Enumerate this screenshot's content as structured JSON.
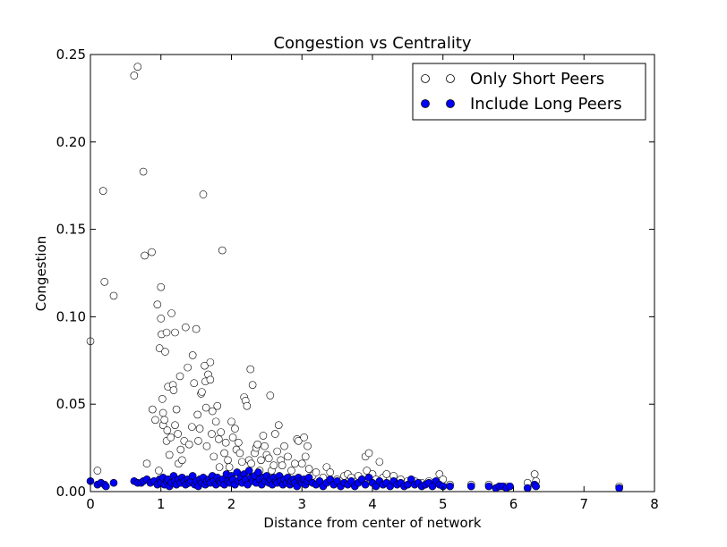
{
  "chart_data": {
    "type": "scatter",
    "title": "Congestion vs Centrality",
    "xlabel": "Distance from center of network",
    "ylabel": "Congestion",
    "xlim": [
      0,
      8
    ],
    "ylim": [
      0,
      0.25
    ],
    "xticks": [
      0,
      1,
      2,
      3,
      4,
      5,
      6,
      7,
      8
    ],
    "yticks": [
      0.0,
      0.05,
      0.1,
      0.15,
      0.2,
      0.25
    ],
    "xtick_labels": [
      "0",
      "1",
      "2",
      "3",
      "4",
      "5",
      "6",
      "7",
      "8"
    ],
    "ytick_labels": [
      "0.00",
      "0.05",
      "0.10",
      "0.15",
      "0.20",
      "0.25"
    ],
    "grid": false,
    "legend_position": "top-right",
    "series": [
      {
        "name": "Only Short Peers",
        "marker": "open-circle",
        "color": "#000000",
        "points": [
          [
            0.0,
            0.086
          ],
          [
            0.1,
            0.012
          ],
          [
            0.18,
            0.172
          ],
          [
            0.2,
            0.12
          ],
          [
            0.33,
            0.112
          ],
          [
            0.62,
            0.238
          ],
          [
            0.67,
            0.243
          ],
          [
            0.75,
            0.183
          ],
          [
            0.77,
            0.135
          ],
          [
            0.8,
            0.016
          ],
          [
            0.87,
            0.137
          ],
          [
            0.88,
            0.047
          ],
          [
            0.92,
            0.041
          ],
          [
            0.95,
            0.107
          ],
          [
            0.97,
            0.012
          ],
          [
            0.98,
            0.082
          ],
          [
            1.0,
            0.099
          ],
          [
            1.0,
            0.117
          ],
          [
            1.01,
            0.09
          ],
          [
            1.02,
            0.053
          ],
          [
            1.03,
            0.045
          ],
          [
            1.03,
            0.038
          ],
          [
            1.05,
            0.041
          ],
          [
            1.06,
            0.08
          ],
          [
            1.08,
            0.091
          ],
          [
            1.08,
            0.029
          ],
          [
            1.09,
            0.035
          ],
          [
            1.1,
            0.06
          ],
          [
            1.12,
            0.021
          ],
          [
            1.14,
            0.031
          ],
          [
            1.15,
            0.102
          ],
          [
            1.17,
            0.061
          ],
          [
            1.18,
            0.058
          ],
          [
            1.2,
            0.091
          ],
          [
            1.2,
            0.038
          ],
          [
            1.22,
            0.047
          ],
          [
            1.24,
            0.033
          ],
          [
            1.25,
            0.016
          ],
          [
            1.27,
            0.066
          ],
          [
            1.28,
            0.024
          ],
          [
            1.3,
            0.018
          ],
          [
            1.33,
            0.029
          ],
          [
            1.35,
            0.094
          ],
          [
            1.38,
            0.071
          ],
          [
            1.4,
            0.027
          ],
          [
            1.44,
            0.037
          ],
          [
            1.45,
            0.078
          ],
          [
            1.47,
            0.062
          ],
          [
            1.5,
            0.093
          ],
          [
            1.52,
            0.044
          ],
          [
            1.53,
            0.029
          ],
          [
            1.55,
            0.036
          ],
          [
            1.57,
            0.056
          ],
          [
            1.58,
            0.057
          ],
          [
            1.6,
            0.17
          ],
          [
            1.62,
            0.072
          ],
          [
            1.63,
            0.063
          ],
          [
            1.64,
            0.048
          ],
          [
            1.65,
            0.026
          ],
          [
            1.67,
            0.067
          ],
          [
            1.7,
            0.074
          ],
          [
            1.7,
            0.064
          ],
          [
            1.72,
            0.033
          ],
          [
            1.73,
            0.046
          ],
          [
            1.75,
            0.02
          ],
          [
            1.78,
            0.04
          ],
          [
            1.8,
            0.049
          ],
          [
            1.82,
            0.03
          ],
          [
            1.83,
            0.014
          ],
          [
            1.85,
            0.034
          ],
          [
            1.87,
            0.138
          ],
          [
            1.9,
            0.022
          ],
          [
            1.92,
            0.028
          ],
          [
            1.95,
            0.018
          ],
          [
            1.97,
            0.014
          ],
          [
            2.0,
            0.04
          ],
          [
            2.02,
            0.031
          ],
          [
            2.05,
            0.036
          ],
          [
            2.07,
            0.024
          ],
          [
            2.1,
            0.028
          ],
          [
            2.12,
            0.022
          ],
          [
            2.15,
            0.017
          ],
          [
            2.18,
            0.054
          ],
          [
            2.2,
            0.052
          ],
          [
            2.22,
            0.049
          ],
          [
            2.25,
            0.018
          ],
          [
            2.27,
            0.07
          ],
          [
            2.28,
            0.016
          ],
          [
            2.3,
            0.061
          ],
          [
            2.33,
            0.022
          ],
          [
            2.35,
            0.025
          ],
          [
            2.37,
            0.027
          ],
          [
            2.4,
            0.012
          ],
          [
            2.42,
            0.018
          ],
          [
            2.45,
            0.032
          ],
          [
            2.47,
            0.026
          ],
          [
            2.5,
            0.021
          ],
          [
            2.53,
            0.019
          ],
          [
            2.55,
            0.055
          ],
          [
            2.57,
            0.012
          ],
          [
            2.6,
            0.015
          ],
          [
            2.62,
            0.033
          ],
          [
            2.65,
            0.023
          ],
          [
            2.67,
            0.038
          ],
          [
            2.7,
            0.018
          ],
          [
            2.72,
            0.015
          ],
          [
            2.75,
            0.026
          ],
          [
            2.8,
            0.02
          ],
          [
            2.85,
            0.012
          ],
          [
            2.9,
            0.016
          ],
          [
            2.93,
            0.03
          ],
          [
            2.95,
            0.029
          ],
          [
            3.0,
            0.016
          ],
          [
            3.03,
            0.031
          ],
          [
            3.05,
            0.02
          ],
          [
            3.08,
            0.026
          ],
          [
            3.1,
            0.013
          ],
          [
            3.15,
            0.009
          ],
          [
            3.2,
            0.011
          ],
          [
            3.3,
            0.008
          ],
          [
            3.35,
            0.014
          ],
          [
            3.4,
            0.011
          ],
          [
            3.5,
            0.007
          ],
          [
            3.55,
            0.006
          ],
          [
            3.6,
            0.009
          ],
          [
            3.65,
            0.01
          ],
          [
            3.7,
            0.008
          ],
          [
            3.8,
            0.009
          ],
          [
            3.85,
            0.007
          ],
          [
            3.9,
            0.02
          ],
          [
            3.92,
            0.012
          ],
          [
            3.95,
            0.022
          ],
          [
            4.0,
            0.01
          ],
          [
            4.05,
            0.007
          ],
          [
            4.1,
            0.017
          ],
          [
            4.15,
            0.008
          ],
          [
            4.2,
            0.01
          ],
          [
            4.3,
            0.009
          ],
          [
            4.4,
            0.007
          ],
          [
            4.5,
            0.006
          ],
          [
            4.6,
            0.006
          ],
          [
            4.7,
            0.005
          ],
          [
            4.8,
            0.006
          ],
          [
            4.9,
            0.005
          ],
          [
            4.95,
            0.01
          ],
          [
            5.0,
            0.007
          ],
          [
            5.1,
            0.004
          ],
          [
            5.4,
            0.004
          ],
          [
            5.65,
            0.004
          ],
          [
            5.8,
            0.003
          ],
          [
            5.9,
            0.003
          ],
          [
            6.2,
            0.005
          ],
          [
            6.3,
            0.01
          ],
          [
            6.32,
            0.006
          ],
          [
            7.5,
            0.003
          ]
        ]
      },
      {
        "name": "Include Long Peers",
        "marker": "filled-circle",
        "color": "#0000ff",
        "points": [
          [
            0.0,
            0.006
          ],
          [
            0.1,
            0.004
          ],
          [
            0.15,
            0.005
          ],
          [
            0.2,
            0.004
          ],
          [
            0.22,
            0.003
          ],
          [
            0.33,
            0.005
          ],
          [
            0.62,
            0.006
          ],
          [
            0.67,
            0.005
          ],
          [
            0.72,
            0.005
          ],
          [
            0.75,
            0.006
          ],
          [
            0.8,
            0.007
          ],
          [
            0.85,
            0.005
          ],
          [
            0.9,
            0.006
          ],
          [
            0.95,
            0.004
          ],
          [
            0.98,
            0.007
          ],
          [
            1.0,
            0.005
          ],
          [
            1.03,
            0.008
          ],
          [
            1.05,
            0.004
          ],
          [
            1.08,
            0.006
          ],
          [
            1.1,
            0.007
          ],
          [
            1.12,
            0.003
          ],
          [
            1.15,
            0.005
          ],
          [
            1.18,
            0.009
          ],
          [
            1.2,
            0.006
          ],
          [
            1.22,
            0.004
          ],
          [
            1.25,
            0.007
          ],
          [
            1.28,
            0.005
          ],
          [
            1.3,
            0.008
          ],
          [
            1.33,
            0.006
          ],
          [
            1.35,
            0.004
          ],
          [
            1.38,
            0.007
          ],
          [
            1.4,
            0.005
          ],
          [
            1.43,
            0.006
          ],
          [
            1.45,
            0.009
          ],
          [
            1.48,
            0.004
          ],
          [
            1.5,
            0.006
          ],
          [
            1.53,
            0.003
          ],
          [
            1.55,
            0.007
          ],
          [
            1.58,
            0.005
          ],
          [
            1.6,
            0.008
          ],
          [
            1.63,
            0.004
          ],
          [
            1.65,
            0.006
          ],
          [
            1.68,
            0.007
          ],
          [
            1.7,
            0.005
          ],
          [
            1.73,
            0.009
          ],
          [
            1.75,
            0.006
          ],
          [
            1.78,
            0.004
          ],
          [
            1.8,
            0.008
          ],
          [
            1.83,
            0.006
          ],
          [
            1.85,
            0.005
          ],
          [
            1.88,
            0.007
          ],
          [
            1.9,
            0.004
          ],
          [
            1.93,
            0.01
          ],
          [
            1.95,
            0.006
          ],
          [
            1.98,
            0.005
          ],
          [
            2.0,
            0.009
          ],
          [
            2.02,
            0.007
          ],
          [
            2.05,
            0.004
          ],
          [
            2.08,
            0.011
          ],
          [
            2.1,
            0.006
          ],
          [
            2.13,
            0.008
          ],
          [
            2.15,
            0.005
          ],
          [
            2.18,
            0.01
          ],
          [
            2.2,
            0.007
          ],
          [
            2.23,
            0.004
          ],
          [
            2.25,
            0.012
          ],
          [
            2.28,
            0.008
          ],
          [
            2.3,
            0.006
          ],
          [
            2.33,
            0.009
          ],
          [
            2.35,
            0.005
          ],
          [
            2.38,
            0.011
          ],
          [
            2.4,
            0.007
          ],
          [
            2.43,
            0.004
          ],
          [
            2.45,
            0.008
          ],
          [
            2.48,
            0.006
          ],
          [
            2.5,
            0.009
          ],
          [
            2.53,
            0.005
          ],
          [
            2.55,
            0.007
          ],
          [
            2.58,
            0.004
          ],
          [
            2.6,
            0.008
          ],
          [
            2.63,
            0.006
          ],
          [
            2.65,
            0.005
          ],
          [
            2.68,
            0.009
          ],
          [
            2.7,
            0.006
          ],
          [
            2.73,
            0.004
          ],
          [
            2.75,
            0.007
          ],
          [
            2.78,
            0.005
          ],
          [
            2.8,
            0.008
          ],
          [
            2.83,
            0.004
          ],
          [
            2.85,
            0.006
          ],
          [
            2.88,
            0.007
          ],
          [
            2.9,
            0.005
          ],
          [
            2.93,
            0.003
          ],
          [
            2.95,
            0.008
          ],
          [
            2.98,
            0.006
          ],
          [
            3.0,
            0.005
          ],
          [
            3.03,
            0.007
          ],
          [
            3.05,
            0.004
          ],
          [
            3.08,
            0.006
          ],
          [
            3.1,
            0.008
          ],
          [
            3.15,
            0.005
          ],
          [
            3.2,
            0.004
          ],
          [
            3.25,
            0.006
          ],
          [
            3.3,
            0.003
          ],
          [
            3.35,
            0.005
          ],
          [
            3.4,
            0.007
          ],
          [
            3.45,
            0.004
          ],
          [
            3.5,
            0.006
          ],
          [
            3.55,
            0.003
          ],
          [
            3.6,
            0.005
          ],
          [
            3.65,
            0.004
          ],
          [
            3.7,
            0.006
          ],
          [
            3.75,
            0.003
          ],
          [
            3.8,
            0.005
          ],
          [
            3.85,
            0.007
          ],
          [
            3.9,
            0.004
          ],
          [
            3.95,
            0.008
          ],
          [
            4.0,
            0.005
          ],
          [
            4.05,
            0.003
          ],
          [
            4.1,
            0.006
          ],
          [
            4.15,
            0.004
          ],
          [
            4.2,
            0.005
          ],
          [
            4.25,
            0.003
          ],
          [
            4.3,
            0.006
          ],
          [
            4.35,
            0.004
          ],
          [
            4.4,
            0.005
          ],
          [
            4.45,
            0.003
          ],
          [
            4.5,
            0.004
          ],
          [
            4.55,
            0.007
          ],
          [
            4.6,
            0.004
          ],
          [
            4.65,
            0.005
          ],
          [
            4.7,
            0.003
          ],
          [
            4.75,
            0.004
          ],
          [
            4.8,
            0.005
          ],
          [
            4.85,
            0.003
          ],
          [
            4.9,
            0.006
          ],
          [
            4.95,
            0.004
          ],
          [
            5.0,
            0.003
          ],
          [
            5.1,
            0.003
          ],
          [
            5.4,
            0.003
          ],
          [
            5.65,
            0.003
          ],
          [
            5.75,
            0.002
          ],
          [
            5.8,
            0.003
          ],
          [
            5.85,
            0.003
          ],
          [
            5.9,
            0.002
          ],
          [
            5.95,
            0.003
          ],
          [
            6.2,
            0.002
          ],
          [
            6.3,
            0.004
          ],
          [
            6.32,
            0.003
          ],
          [
            7.5,
            0.002
          ]
        ]
      }
    ]
  }
}
